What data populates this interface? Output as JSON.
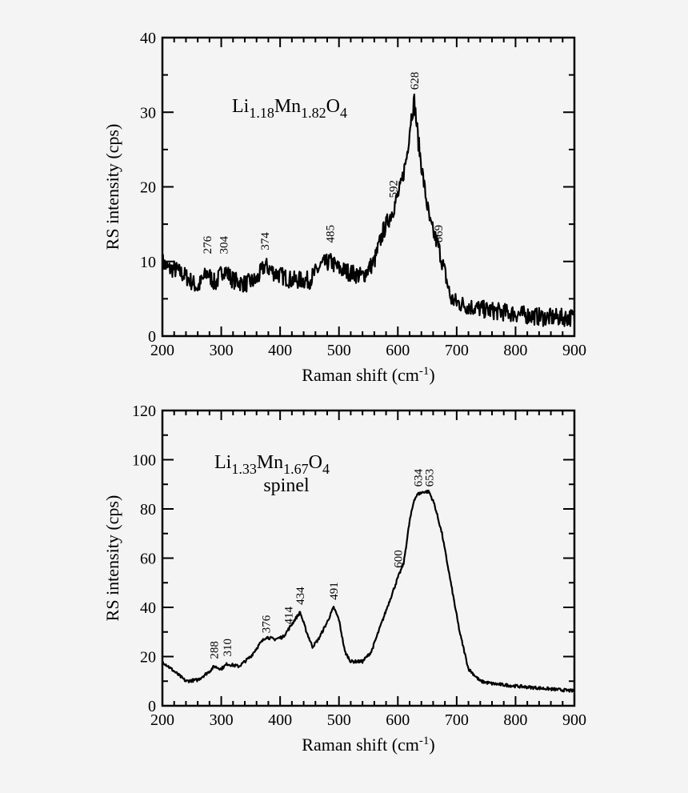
{
  "chart_data": [
    {
      "type": "line",
      "title": {
        "parts": [
          [
            "Li",
            ""
          ],
          [
            "1.18",
            "sub"
          ],
          [
            "Mn",
            ""
          ],
          [
            "1.82",
            "sub"
          ],
          [
            "O",
            ""
          ],
          [
            "4",
            "sub"
          ]
        ]
      },
      "xlabel": {
        "main": "Raman shift (cm",
        "sup": "-1",
        "end": ")"
      },
      "ylabel": "RS intensity (cps)",
      "xlim": [
        200,
        900
      ],
      "ylim": [
        0,
        40
      ],
      "xticks": [
        200,
        300,
        400,
        500,
        600,
        700,
        800,
        900
      ],
      "yticks": [
        0,
        10,
        20,
        30,
        40
      ],
      "x_minor": 20,
      "y_minor": 5,
      "grid": false,
      "color": "#000000",
      "series": [
        {
          "points": [
            [
              200,
              10
            ],
            [
              210,
              9
            ],
            [
              220,
              9
            ],
            [
              240,
              8
            ],
            [
              260,
              6.5
            ],
            [
              276,
              8.5
            ],
            [
              290,
              7
            ],
            [
              304,
              9
            ],
            [
              320,
              7.5
            ],
            [
              340,
              7
            ],
            [
              360,
              7.5
            ],
            [
              374,
              9.5
            ],
            [
              390,
              8.5
            ],
            [
              420,
              7.5
            ],
            [
              450,
              7.5
            ],
            [
              470,
              9.5
            ],
            [
              485,
              10
            ],
            [
              500,
              9
            ],
            [
              520,
              8.5
            ],
            [
              540,
              8
            ],
            [
              560,
              10
            ],
            [
              575,
              14
            ],
            [
              592,
              17
            ],
            [
              605,
              20
            ],
            [
              615,
              24
            ],
            [
              622,
              29
            ],
            [
              628,
              31.5
            ],
            [
              635,
              26
            ],
            [
              645,
              20
            ],
            [
              655,
              15
            ],
            [
              669,
              12
            ],
            [
              680,
              8.5
            ],
            [
              690,
              5
            ],
            [
              700,
              4.5
            ],
            [
              720,
              4
            ],
            [
              750,
              3.5
            ],
            [
              800,
              3
            ],
            [
              850,
              2.5
            ],
            [
              900,
              2.5
            ]
          ]
        }
      ],
      "annotations": [
        {
          "text": "276",
          "x": 276,
          "y": 11
        },
        {
          "text": "304",
          "x": 304,
          "y": 11
        },
        {
          "text": "374",
          "x": 374,
          "y": 11.5
        },
        {
          "text": "485",
          "x": 485,
          "y": 12.5
        },
        {
          "text": "592",
          "x": 592,
          "y": 18.5
        },
        {
          "text": "628",
          "x": 628,
          "y": 33
        },
        {
          "text": "669",
          "x": 669,
          "y": 12.5
        }
      ]
    },
    {
      "type": "line",
      "title": {
        "parts": [
          [
            "Li",
            ""
          ],
          [
            "1.33",
            "sub"
          ],
          [
            "Mn",
            ""
          ],
          [
            "1.67",
            "sub"
          ],
          [
            "O",
            ""
          ],
          [
            "4",
            "sub"
          ]
        ],
        "line2": "spinel"
      },
      "xlabel": {
        "main": "Raman shift (cm",
        "sup": "-1",
        "end": ")"
      },
      "ylabel": "RS intensity (cps)",
      "xlim": [
        200,
        900
      ],
      "ylim": [
        0,
        120
      ],
      "xticks": [
        200,
        300,
        400,
        500,
        600,
        700,
        800,
        900
      ],
      "yticks": [
        0,
        20,
        40,
        60,
        80,
        100,
        120
      ],
      "x_minor": 20,
      "y_minor": 10,
      "grid": false,
      "color": "#000000",
      "series": [
        {
          "points": [
            [
              200,
              18
            ],
            [
              220,
              14
            ],
            [
              240,
              10
            ],
            [
              260,
              10.5
            ],
            [
              280,
              14
            ],
            [
              288,
              16
            ],
            [
              300,
              15
            ],
            [
              310,
              17
            ],
            [
              330,
              16
            ],
            [
              350,
              20
            ],
            [
              365,
              25
            ],
            [
              376,
              28
            ],
            [
              390,
              27
            ],
            [
              405,
              28
            ],
            [
              414,
              31
            ],
            [
              425,
              35
            ],
            [
              434,
              38
            ],
            [
              445,
              30
            ],
            [
              455,
              24
            ],
            [
              465,
              27
            ],
            [
              480,
              34
            ],
            [
              491,
              40
            ],
            [
              500,
              35
            ],
            [
              510,
              22
            ],
            [
              520,
              18
            ],
            [
              540,
              18
            ],
            [
              555,
              22
            ],
            [
              570,
              32
            ],
            [
              585,
              42
            ],
            [
              600,
              52
            ],
            [
              610,
              58
            ],
            [
              620,
              75
            ],
            [
              628,
              84
            ],
            [
              634,
              86
            ],
            [
              645,
              87
            ],
            [
              653,
              87
            ],
            [
              662,
              82
            ],
            [
              675,
              70
            ],
            [
              690,
              50
            ],
            [
              705,
              30
            ],
            [
              720,
              15
            ],
            [
              740,
              10
            ],
            [
              760,
              9
            ],
            [
              800,
              8
            ],
            [
              850,
              7
            ],
            [
              900,
              6
            ]
          ]
        }
      ],
      "annotations": [
        {
          "text": "288",
          "x": 288,
          "y": 19
        },
        {
          "text": "310",
          "x": 310,
          "y": 20
        },
        {
          "text": "376",
          "x": 376,
          "y": 29.5
        },
        {
          "text": "414",
          "x": 414,
          "y": 33
        },
        {
          "text": "434",
          "x": 434,
          "y": 41
        },
        {
          "text": "491",
          "x": 491,
          "y": 43
        },
        {
          "text": "600",
          "x": 600,
          "y": 56
        },
        {
          "text": "634",
          "x": 634,
          "y": 89
        },
        {
          "text": "653",
          "x": 653,
          "y": 89
        }
      ]
    }
  ]
}
